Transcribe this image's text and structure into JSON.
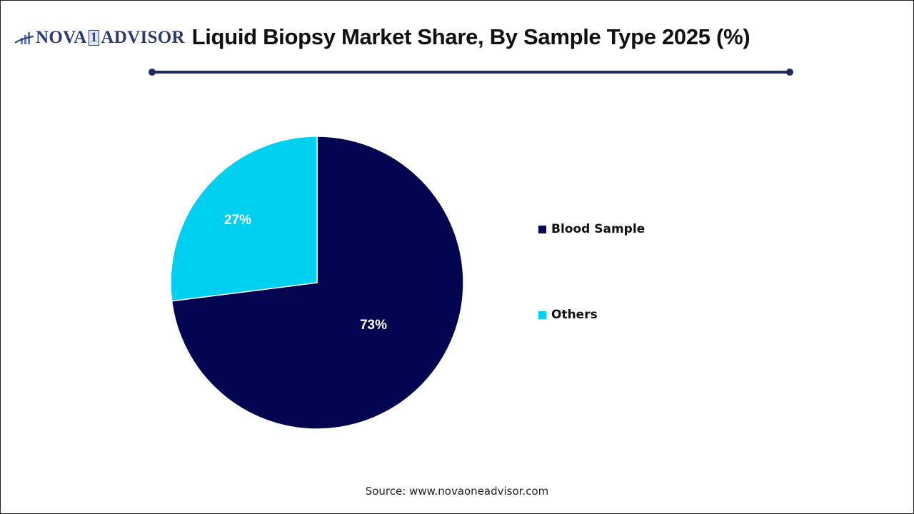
{
  "brand": {
    "logo_text_left": "NOVA",
    "logo_text_one": "1",
    "logo_text_right": "ADVISOR",
    "logo_icon": "bar-chart-swoosh-icon",
    "color": "#2b3a73"
  },
  "header": {
    "title": "Liquid Biopsy Market Share, By Sample Type 2025 (%)",
    "rule_color": "#1f2a5c"
  },
  "chart_data": {
    "type": "pie",
    "title": "Liquid Biopsy Market Share, By Sample Type 2025 (%)",
    "categories": [
      "Blood Sample",
      "Others"
    ],
    "values": [
      73,
      27
    ],
    "unit": "%",
    "data_labels": [
      "73%",
      "27%"
    ],
    "colors": [
      "#03044f",
      "#00d0f0"
    ],
    "start_angle_deg": 0,
    "direction": "clockwise",
    "legend_position": "right"
  },
  "legend": {
    "items": [
      {
        "label": "Blood Sample",
        "color": "#03044f"
      },
      {
        "label": "Others",
        "color": "#00d0f0"
      }
    ]
  },
  "footer": {
    "source": "Source: www.novaoneadvisor.com"
  }
}
